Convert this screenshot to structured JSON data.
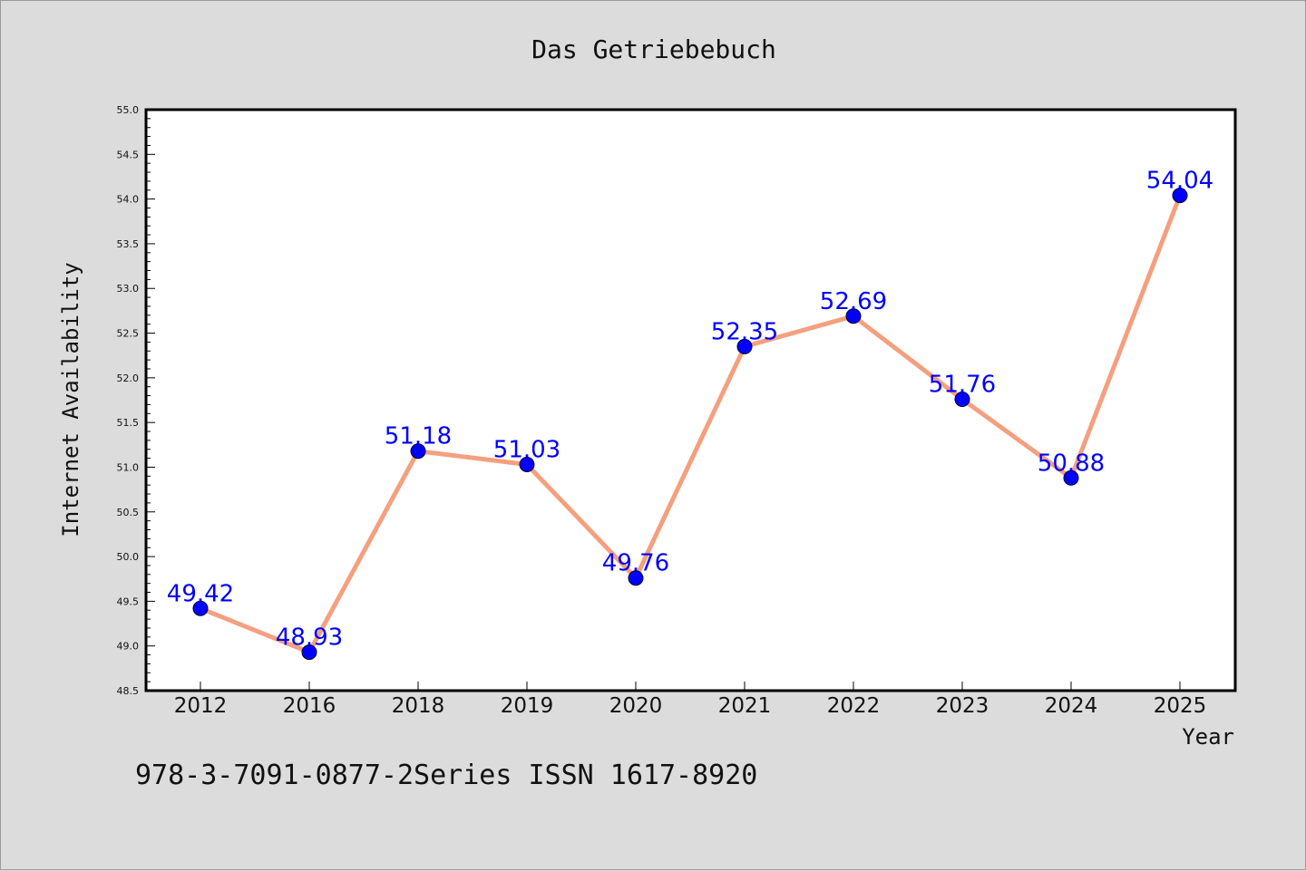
{
  "chart_data": {
    "type": "line",
    "title": "Das Getriebebuch",
    "xlabel": "Year",
    "ylabel": "Internet Availability",
    "categories": [
      "2012",
      "2016",
      "2018",
      "2019",
      "2020",
      "2021",
      "2022",
      "2023",
      "2024",
      "2025"
    ],
    "values": [
      49.42,
      48.93,
      51.18,
      51.03,
      49.76,
      52.35,
      52.69,
      51.76,
      50.88,
      54.04
    ],
    "data_labels": [
      "49.42",
      "48.93",
      "51.18",
      "51.03",
      "49.76",
      "52.35",
      "52.69",
      "51.76",
      "50.88",
      "54.04"
    ],
    "ylim": [
      48.5,
      55.0
    ],
    "ytick_step": 0.5,
    "grid": false,
    "legend": "none",
    "line_color": "#f4a07e",
    "marker_color": "#0000ff",
    "label_color": "#0000ff"
  },
  "footer": {
    "text": "978-3-7091-0877-2Series ISSN 1617-8920"
  }
}
